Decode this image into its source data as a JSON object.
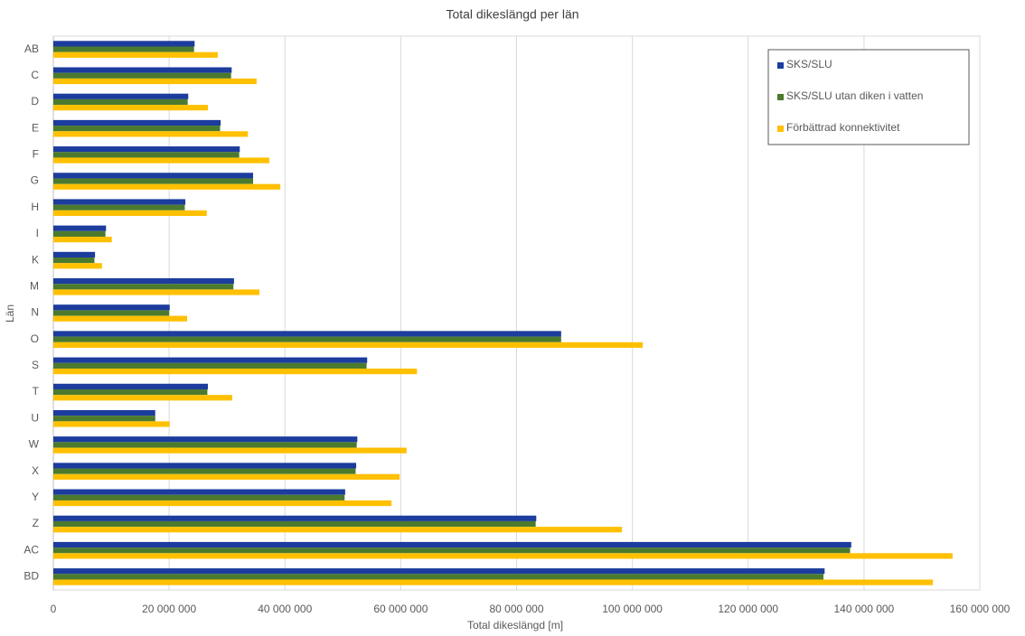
{
  "chart_data": {
    "type": "hbar",
    "title": "Total dikeslängd per län",
    "xlabel": "Total dikeslängd [m]",
    "ylabel": "Län",
    "categories": [
      "AB",
      "C",
      "D",
      "E",
      "F",
      "G",
      "H",
      "I",
      "K",
      "M",
      "N",
      "O",
      "S",
      "T",
      "U",
      "W",
      "X",
      "Y",
      "Z",
      "AC",
      "BD"
    ],
    "series": [
      {
        "name": "SKS/SLU",
        "color": "#1c3c9e",
        "values": [
          24400000,
          30800000,
          23300000,
          28900000,
          32200000,
          34500000,
          22800000,
          9100000,
          7200000,
          31200000,
          20100000,
          87700000,
          54200000,
          26700000,
          17600000,
          52500000,
          52300000,
          50400000,
          83400000,
          137800000,
          133200000
        ]
      },
      {
        "name": "SKS/SLU utan diken i vatten",
        "color": "#4b7a2e",
        "values": [
          24300000,
          30700000,
          23200000,
          28800000,
          32100000,
          34500000,
          22700000,
          9000000,
          7100000,
          31100000,
          20000000,
          87700000,
          54100000,
          26600000,
          17600000,
          52400000,
          52200000,
          50300000,
          83300000,
          137600000,
          133000000
        ]
      },
      {
        "name": "Förbättrad konnektivitet",
        "color": "#ffc000",
        "values": [
          28400000,
          35100000,
          26700000,
          33600000,
          37300000,
          39200000,
          26500000,
          10100000,
          8400000,
          35600000,
          23100000,
          101800000,
          62800000,
          30900000,
          20100000,
          61000000,
          59800000,
          58400000,
          98200000,
          155300000,
          151900000
        ]
      }
    ],
    "xlim": [
      0,
      160000000
    ],
    "xticks": [
      {
        "value": 0,
        "label": "0"
      },
      {
        "value": 20000000,
        "label": "20 000 000"
      },
      {
        "value": 40000000,
        "label": "40 000 000"
      },
      {
        "value": 60000000,
        "label": "60 000 000"
      },
      {
        "value": 80000000,
        "label": "80 000 000"
      },
      {
        "value": 100000000,
        "label": "100 000 000"
      },
      {
        "value": 120000000,
        "label": "120 000 000"
      },
      {
        "value": 140000000,
        "label": "140 000 000"
      },
      {
        "value": 160000000,
        "label": "160 000 000"
      }
    ],
    "grid": true,
    "legend": "top-right"
  }
}
